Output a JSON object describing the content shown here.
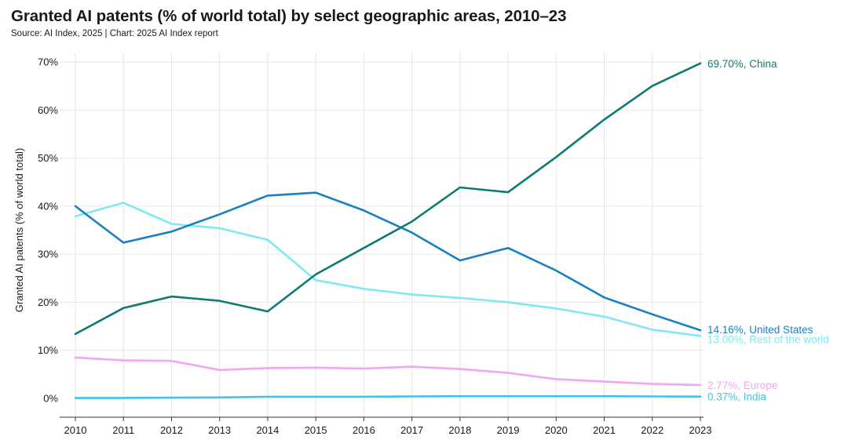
{
  "chart_data": {
    "type": "line",
    "title": "Granted AI patents (% of world total) by select geographic areas, 2010–23",
    "source": "Source: AI Index, 2025 | Chart: 2025 AI Index report",
    "xlabel": "",
    "ylabel": "Granted AI patents (% of world total)",
    "ylim": [
      0,
      70
    ],
    "yticks": [
      0,
      10,
      20,
      30,
      40,
      50,
      60,
      70
    ],
    "ytick_suffix": "%",
    "grid": true,
    "x": [
      "2010",
      "2011",
      "2012",
      "2013",
      "2014",
      "2015",
      "2016",
      "2017",
      "2018",
      "2019",
      "2020",
      "2021",
      "2022",
      "2023"
    ],
    "series": [
      {
        "key": "china",
        "name": "China",
        "label": "69.70%, China",
        "color": "#0f7a74",
        "values": [
          13.4,
          18.8,
          21.2,
          20.3,
          18.1,
          25.8,
          31.3,
          36.8,
          43.9,
          42.9,
          50.2,
          58.0,
          65.0,
          69.7
        ]
      },
      {
        "key": "us",
        "name": "United States",
        "label": "14.16%, United States",
        "color": "#1a7fc0",
        "values": [
          40.0,
          32.4,
          34.7,
          38.3,
          42.2,
          42.8,
          39.1,
          34.5,
          28.7,
          31.3,
          26.6,
          21.0,
          17.5,
          14.16
        ]
      },
      {
        "key": "row",
        "name": "Rest of the world",
        "label": "13.00%, Rest of the world",
        "color": "#7fe9ef",
        "values": [
          37.9,
          40.7,
          36.3,
          35.4,
          33.0,
          24.6,
          22.8,
          21.6,
          20.9,
          20.0,
          18.7,
          17.0,
          14.3,
          13.0
        ]
      },
      {
        "key": "europe",
        "name": "Europe",
        "label": "2.77%, Europe",
        "color": "#f2a5f2",
        "values": [
          8.5,
          7.9,
          7.8,
          5.9,
          6.3,
          6.4,
          6.2,
          6.6,
          6.1,
          5.3,
          4.0,
          3.5,
          3.0,
          2.77
        ]
      },
      {
        "key": "india",
        "name": "India",
        "label": "0.37%, India",
        "color": "#3fc3ee",
        "values": [
          0.1,
          0.1,
          0.15,
          0.2,
          0.35,
          0.35,
          0.35,
          0.4,
          0.45,
          0.45,
          0.45,
          0.45,
          0.4,
          0.37
        ]
      }
    ]
  }
}
